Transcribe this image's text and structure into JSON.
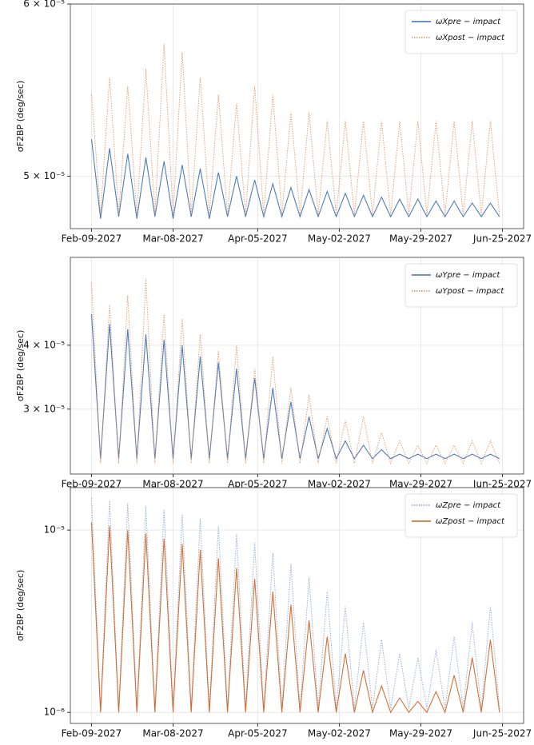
{
  "chart_data": [
    {
      "type": "line",
      "ylabel": "σF2BP (deg/sec)",
      "log_y": true,
      "grid": true,
      "legend": "upper right",
      "xlim": [
        "2027-02-02",
        "2027-07-02"
      ],
      "xticks": [
        {
          "value": "2027-02-09",
          "label": "Feb-09-2027"
        },
        {
          "value": "2027-03-08",
          "label": "Mar-08-2027"
        },
        {
          "value": "2027-04-05",
          "label": "Apr-05-2027"
        },
        {
          "value": "2027-05-02",
          "label": "May-02-2027"
        },
        {
          "value": "2027-05-29",
          "label": "May-29-2027"
        },
        {
          "value": "2027-06-25",
          "label": "Jun-25-2027"
        }
      ],
      "ylim": [
        4.73e-05,
        6e-05
      ],
      "yticks": [
        {
          "value": 5e-05,
          "label": "5 × 10⁻⁵"
        },
        {
          "value": 6e-05,
          "label": "6 × 10⁻⁵"
        }
      ],
      "x": [
        "2027-02-09",
        "2027-02-12",
        "2027-02-15",
        "2027-02-18",
        "2027-02-21",
        "2027-02-24",
        "2027-02-27",
        "2027-03-02",
        "2027-03-05",
        "2027-03-08",
        "2027-03-11",
        "2027-03-14",
        "2027-03-17",
        "2027-03-20",
        "2027-03-23",
        "2027-03-26",
        "2027-03-29",
        "2027-04-01",
        "2027-04-04",
        "2027-04-07",
        "2027-04-10",
        "2027-04-13",
        "2027-04-16",
        "2027-04-19",
        "2027-04-22",
        "2027-04-25",
        "2027-04-28",
        "2027-05-01",
        "2027-05-04",
        "2027-05-07",
        "2027-05-10",
        "2027-05-13",
        "2027-05-16",
        "2027-05-19",
        "2027-05-22",
        "2027-05-25",
        "2027-05-28",
        "2027-05-31",
        "2027-06-03",
        "2027-06-06",
        "2027-06-09",
        "2027-06-12",
        "2027-06-15",
        "2027-06-18",
        "2027-06-21",
        "2027-06-24"
      ],
      "series": [
        {
          "name": "ωXpre − impact",
          "color": "#3a6fb5",
          "linestyle": "solid",
          "values": [
            5.2e-05,
            4.78e-05,
            5.15e-05,
            4.79e-05,
            5.12e-05,
            4.78e-05,
            5.1e-05,
            4.79e-05,
            5.08e-05,
            4.78e-05,
            5.06e-05,
            4.79e-05,
            5.04e-05,
            4.78e-05,
            5.02e-05,
            4.79e-05,
            5e-05,
            4.79e-05,
            4.98e-05,
            4.79e-05,
            4.96e-05,
            4.79e-05,
            4.94e-05,
            4.79e-05,
            4.93e-05,
            4.79e-05,
            4.92e-05,
            4.79e-05,
            4.91e-05,
            4.79e-05,
            4.9e-05,
            4.79e-05,
            4.89e-05,
            4.79e-05,
            4.88e-05,
            4.79e-05,
            4.88e-05,
            4.79e-05,
            4.87e-05,
            4.79e-05,
            4.87e-05,
            4.79e-05,
            4.86e-05,
            4.79e-05,
            4.86e-05,
            4.79e-05
          ]
        },
        {
          "name": "ωXpost − impact",
          "color": "#e0915a",
          "linestyle": "dotted",
          "values": [
            5.45e-05,
            4.8e-05,
            5.55e-05,
            4.8e-05,
            5.5e-05,
            4.8e-05,
            5.6e-05,
            4.8e-05,
            5.75e-05,
            4.8e-05,
            5.7e-05,
            4.8e-05,
            5.55e-05,
            4.8e-05,
            5.45e-05,
            4.8e-05,
            5.4e-05,
            4.8e-05,
            5.5e-05,
            4.8e-05,
            5.45e-05,
            4.8e-05,
            5.35e-05,
            4.8e-05,
            5.35e-05,
            4.8e-05,
            5.3e-05,
            4.8e-05,
            5.3e-05,
            4.8e-05,
            5.3e-05,
            4.8e-05,
            5.3e-05,
            4.8e-05,
            5.3e-05,
            4.8e-05,
            5.3e-05,
            4.8e-05,
            5.3e-05,
            4.8e-05,
            5.3e-05,
            4.8e-05,
            5.3e-05,
            4.8e-05,
            5.3e-05,
            4.8e-05
          ]
        }
      ]
    },
    {
      "type": "line",
      "ylabel": "σF2BP (deg/sec)",
      "log_y": true,
      "grid": true,
      "legend": "upper right",
      "xlim": [
        "2027-02-02",
        "2027-07-02"
      ],
      "xticks": [
        {
          "value": "2027-02-09",
          "label": "Feb-09-2027"
        },
        {
          "value": "2027-03-08",
          "label": "Mar-08-2027"
        },
        {
          "value": "2027-04-05",
          "label": "Apr-05-2027"
        },
        {
          "value": "2027-05-02",
          "label": "May-02-2027"
        },
        {
          "value": "2027-05-29",
          "label": "May-29-2027"
        },
        {
          "value": "2027-06-25",
          "label": "Jun-25-2027"
        }
      ],
      "ylim": [
        2.24e-05,
        5.94e-05
      ],
      "yticks": [
        {
          "value": 3e-05,
          "label": "3 × 10⁻⁵"
        },
        {
          "value": 4e-05,
          "label": "4 × 10⁻⁵"
        }
      ],
      "x": [
        "2027-02-09",
        "2027-02-12",
        "2027-02-15",
        "2027-02-18",
        "2027-02-21",
        "2027-02-24",
        "2027-02-27",
        "2027-03-02",
        "2027-03-05",
        "2027-03-08",
        "2027-03-11",
        "2027-03-14",
        "2027-03-17",
        "2027-03-20",
        "2027-03-23",
        "2027-03-26",
        "2027-03-29",
        "2027-04-01",
        "2027-04-04",
        "2027-04-07",
        "2027-04-10",
        "2027-04-13",
        "2027-04-16",
        "2027-04-19",
        "2027-04-22",
        "2027-04-25",
        "2027-04-28",
        "2027-05-01",
        "2027-05-04",
        "2027-05-07",
        "2027-05-10",
        "2027-05-13",
        "2027-05-16",
        "2027-05-19",
        "2027-05-22",
        "2027-05-25",
        "2027-05-28",
        "2027-05-31",
        "2027-06-03",
        "2027-06-06",
        "2027-06-09",
        "2027-06-12",
        "2027-06-15",
        "2027-06-18",
        "2027-06-21",
        "2027-06-24"
      ],
      "series": [
        {
          "name": "ωYpre − impact",
          "color": "#3a6fb5",
          "linestyle": "solid",
          "values": [
            4.6e-05,
            2.4e-05,
            4.4e-05,
            2.4e-05,
            4.3e-05,
            2.4e-05,
            4.2e-05,
            2.4e-05,
            4.1e-05,
            2.4e-05,
            4e-05,
            2.4e-05,
            3.8e-05,
            2.4e-05,
            3.7e-05,
            2.4e-05,
            3.6e-05,
            2.4e-05,
            3.45e-05,
            2.4e-05,
            3.3e-05,
            2.4e-05,
            3.1e-05,
            2.4e-05,
            2.9e-05,
            2.4e-05,
            2.75e-05,
            2.4e-05,
            2.6e-05,
            2.4e-05,
            2.55e-05,
            2.4e-05,
            2.5e-05,
            2.4e-05,
            2.45e-05,
            2.4e-05,
            2.45e-05,
            2.4e-05,
            2.45e-05,
            2.4e-05,
            2.45e-05,
            2.4e-05,
            2.45e-05,
            2.4e-05,
            2.45e-05,
            2.4e-05
          ]
        },
        {
          "name": "ωYpost − impact",
          "color": "#e0915a",
          "linestyle": "dotted",
          "values": [
            5.3e-05,
            2.35e-05,
            4.8e-05,
            2.35e-05,
            5e-05,
            2.35e-05,
            5.4e-05,
            2.35e-05,
            4.6e-05,
            2.35e-05,
            4.5e-05,
            2.35e-05,
            4.2e-05,
            2.35e-05,
            3.9e-05,
            2.35e-05,
            4e-05,
            2.35e-05,
            3.6e-05,
            2.35e-05,
            3.8e-05,
            2.35e-05,
            3.3e-05,
            2.35e-05,
            3.2e-05,
            2.35e-05,
            2.9e-05,
            2.35e-05,
            2.85e-05,
            2.35e-05,
            2.9e-05,
            2.35e-05,
            2.7e-05,
            2.35e-05,
            2.6e-05,
            2.35e-05,
            2.55e-05,
            2.35e-05,
            2.55e-05,
            2.35e-05,
            2.55e-05,
            2.35e-05,
            2.6e-05,
            2.35e-05,
            2.6e-05,
            2.35e-05
          ]
        }
      ]
    },
    {
      "type": "line",
      "ylabel": "σF2BP (deg/sec)",
      "log_y": true,
      "grid": true,
      "legend": "upper right",
      "xlim": [
        "2027-02-02",
        "2027-07-02"
      ],
      "xticks": [
        {
          "value": "2027-02-09",
          "label": "Feb-09-2027"
        },
        {
          "value": "2027-03-08",
          "label": "Mar-08-2027"
        },
        {
          "value": "2027-04-05",
          "label": "Apr-05-2027"
        },
        {
          "value": "2027-05-02",
          "label": "May-02-2027"
        },
        {
          "value": "2027-05-29",
          "label": "May-29-2027"
        },
        {
          "value": "2027-06-25",
          "label": "Jun-25-2027"
        }
      ],
      "ylim": [
        8.7e-07,
        1.71e-05
      ],
      "yticks": [
        {
          "value": 1e-06,
          "label": "10⁻⁶"
        },
        {
          "value": 1e-05,
          "label": "10⁻⁵"
        }
      ],
      "x": [
        "2027-02-09",
        "2027-02-12",
        "2027-02-15",
        "2027-02-18",
        "2027-02-21",
        "2027-02-24",
        "2027-02-27",
        "2027-03-02",
        "2027-03-05",
        "2027-03-08",
        "2027-03-11",
        "2027-03-14",
        "2027-03-17",
        "2027-03-20",
        "2027-03-23",
        "2027-03-26",
        "2027-03-29",
        "2027-04-01",
        "2027-04-04",
        "2027-04-07",
        "2027-04-10",
        "2027-04-13",
        "2027-04-16",
        "2027-04-19",
        "2027-04-22",
        "2027-04-25",
        "2027-04-28",
        "2027-05-01",
        "2027-05-04",
        "2027-05-07",
        "2027-05-10",
        "2027-05-13",
        "2027-05-16",
        "2027-05-19",
        "2027-05-22",
        "2027-05-25",
        "2027-05-28",
        "2027-05-31",
        "2027-06-03",
        "2027-06-06",
        "2027-06-09",
        "2027-06-12",
        "2027-06-15",
        "2027-06-18",
        "2027-06-21",
        "2027-06-24"
      ],
      "series": [
        {
          "name": "ωZpre − impact",
          "color": "#7fa3d6",
          "linestyle": "dotted",
          "values": [
            1.5e-05,
            1.05e-06,
            1.45e-05,
            1.05e-06,
            1.4e-05,
            1.05e-06,
            1.35e-05,
            1.05e-06,
            1.3e-05,
            1.05e-06,
            1.22e-05,
            1.05e-06,
            1.15e-05,
            1.05e-06,
            1.05e-05,
            1.05e-06,
            9.5e-06,
            1.05e-06,
            8.5e-06,
            1.05e-06,
            7.5e-06,
            1.05e-06,
            6.5e-06,
            1.05e-06,
            5.5e-06,
            1.05e-06,
            4.6e-06,
            1.05e-06,
            3.8e-06,
            1.05e-06,
            3.1e-06,
            1.05e-06,
            2.5e-06,
            1.05e-06,
            2.1e-06,
            1.05e-06,
            2e-06,
            1.05e-06,
            2.2e-06,
            1.05e-06,
            2.6e-06,
            1.05e-06,
            3.1e-06,
            1.05e-06,
            3.8e-06,
            1.05e-06
          ]
        },
        {
          "name": "ωZpost − impact",
          "color": "#d2611c",
          "linestyle": "solid",
          "values": [
            1.1e-05,
            1e-06,
            1.05e-05,
            1e-06,
            1e-05,
            1e-06,
            9.6e-06,
            1e-06,
            9e-06,
            1e-06,
            8.4e-06,
            1e-06,
            7.8e-06,
            1e-06,
            7e-06,
            1e-06,
            6.2e-06,
            1e-06,
            5.4e-06,
            1e-06,
            4.6e-06,
            1e-06,
            3.9e-06,
            1e-06,
            3.2e-06,
            1e-06,
            2.6e-06,
            1e-06,
            2.1e-06,
            1e-06,
            1.7e-06,
            1e-06,
            1.4e-06,
            1e-06,
            1.2e-06,
            1e-06,
            1.15e-06,
            1e-06,
            1.3e-06,
            1e-06,
            1.6e-06,
            1e-06,
            2e-06,
            1e-06,
            2.5e-06,
            1e-06
          ]
        }
      ]
    }
  ]
}
